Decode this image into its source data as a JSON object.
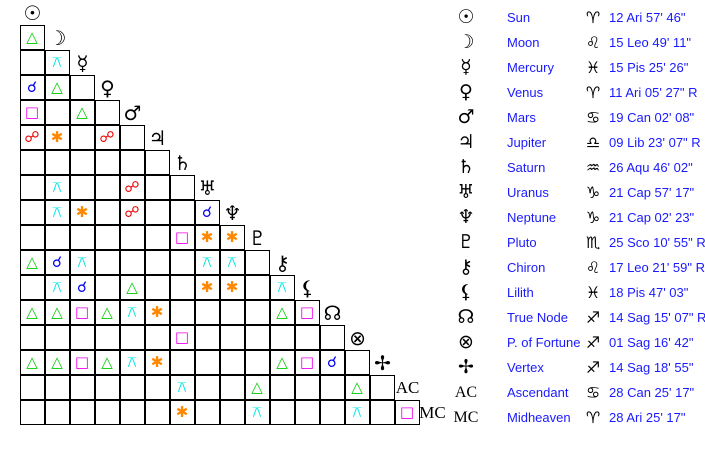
{
  "aspect_types": {
    "T": {
      "name": "trine",
      "symbol": "△",
      "color": "#00cc00"
    },
    "X": {
      "name": "quincunx",
      "symbol": "⚻",
      "color": "#00e5e5"
    },
    "C": {
      "name": "conjunction",
      "symbol": "☌",
      "color": "#0000ee"
    },
    "S": {
      "name": "square",
      "symbol": "□",
      "color": "#ee00ee"
    },
    "O": {
      "name": "opposition",
      "symbol": "☍",
      "color": "#ee0000"
    },
    "E": {
      "name": "sextile",
      "symbol": "✱",
      "color": "#ff8800"
    }
  },
  "bodies": [
    {
      "glyph": "☉",
      "icon": "sun-icon",
      "name": "Sun",
      "sign": "♈",
      "position": "12 Ari 57' 46\""
    },
    {
      "glyph": "☽",
      "icon": "moon-icon",
      "name": "Moon",
      "sign": "♌",
      "position": "15 Leo 49' 11\""
    },
    {
      "glyph": "☿",
      "icon": "mercury-icon",
      "name": "Mercury",
      "sign": "♓",
      "position": "15 Pis 25' 26\""
    },
    {
      "glyph": "♀",
      "icon": "venus-icon",
      "name": "Venus",
      "sign": "♈",
      "position": "11 Ari 05' 27\" R"
    },
    {
      "glyph": "♂",
      "icon": "mars-icon",
      "name": "Mars",
      "sign": "♋",
      "position": "19 Can 02' 08\""
    },
    {
      "glyph": "♃",
      "icon": "jupiter-icon",
      "name": "Jupiter",
      "sign": "♎",
      "position": "09 Lib 23' 07\" R"
    },
    {
      "glyph": "♄",
      "icon": "saturn-icon",
      "name": "Saturn",
      "sign": "♒",
      "position": "26 Aqu 46' 02\""
    },
    {
      "glyph": "♅",
      "icon": "uranus-icon",
      "name": "Uranus",
      "sign": "♑",
      "position": "21 Cap 57' 17\""
    },
    {
      "glyph": "♆",
      "icon": "neptune-icon",
      "name": "Neptune",
      "sign": "♑",
      "position": "21 Cap 02' 23\""
    },
    {
      "glyph": "♇",
      "icon": "pluto-icon",
      "name": "Pluto",
      "sign": "♏",
      "position": "25 Sco 10' 55\" R"
    },
    {
      "glyph": "⚷",
      "icon": "chiron-icon",
      "name": "Chiron",
      "sign": "♌",
      "position": "17 Leo 21' 59\" R"
    },
    {
      "glyph": "⚸",
      "icon": "lilith-icon",
      "name": "Lilith",
      "sign": "♓",
      "position": "18 Pis 47' 03\""
    },
    {
      "glyph": "☊",
      "icon": "true-node-icon",
      "name": "True Node",
      "sign": "♐",
      "position": "14 Sag 15' 07\" R"
    },
    {
      "glyph": "⊗",
      "icon": "part-of-fortune-icon",
      "name": "P. of Fortune",
      "sign": "♐",
      "position": "01 Sag 16' 42\""
    },
    {
      "glyph": "✢",
      "icon": "vertex-icon",
      "name": "Vertex",
      "sign": "♐",
      "position": "14 Sag 18' 55\""
    },
    {
      "glyph": "AC",
      "icon": "ascendant-icon",
      "name": "Ascendant",
      "sign": "♋",
      "position": "28 Can 25' 17\""
    },
    {
      "glyph": "MC",
      "icon": "midheaven-icon",
      "name": "Midheaven",
      "sign": "♈",
      "position": "28 Ari 25' 17\""
    }
  ],
  "sign_icons": {
    "♈": "aries-icon",
    "♌": "leo-icon",
    "♓": "pisces-icon",
    "♋": "cancer-icon",
    "♎": "libra-icon",
    "♒": "aquarius-icon",
    "♑": "capricorn-icon",
    "♏": "scorpio-icon",
    "♐": "sagittarius-icon"
  },
  "aspect_grid": [
    [
      "T"
    ],
    [
      "",
      "X"
    ],
    [
      "C",
      "T",
      ""
    ],
    [
      "S",
      "",
      "T",
      ""
    ],
    [
      "O",
      "E",
      "",
      "O",
      ""
    ],
    [
      "",
      "",
      "",
      "",
      "",
      ""
    ],
    [
      "",
      "X",
      "",
      "",
      "O",
      "",
      ""
    ],
    [
      "",
      "X",
      "E",
      "",
      "O",
      "",
      "",
      "C"
    ],
    [
      "",
      "",
      "",
      "",
      "",
      "",
      "S",
      "E",
      "E"
    ],
    [
      "T",
      "C",
      "X",
      "",
      "",
      "",
      "",
      "X",
      "X",
      ""
    ],
    [
      "",
      "X",
      "C",
      "",
      "T",
      "",
      "",
      "E",
      "E",
      "",
      "X"
    ],
    [
      "T",
      "T",
      "S",
      "T",
      "X",
      "E",
      "",
      "",
      "",
      "",
      "T",
      "S"
    ],
    [
      "",
      "",
      "",
      "",
      "",
      "",
      "S",
      "",
      "",
      "",
      "",
      "",
      ""
    ],
    [
      "T",
      "T",
      "S",
      "T",
      "X",
      "E",
      "",
      "",
      "",
      "",
      "T",
      "S",
      "C",
      ""
    ],
    [
      "",
      "",
      "",
      "",
      "",
      "",
      "X",
      "",
      "",
      "T",
      "",
      "",
      "",
      "T",
      ""
    ],
    [
      "",
      "",
      "",
      "",
      "",
      "",
      "E",
      "",
      "",
      "X",
      "",
      "",
      "",
      "X",
      "",
      "S"
    ]
  ]
}
